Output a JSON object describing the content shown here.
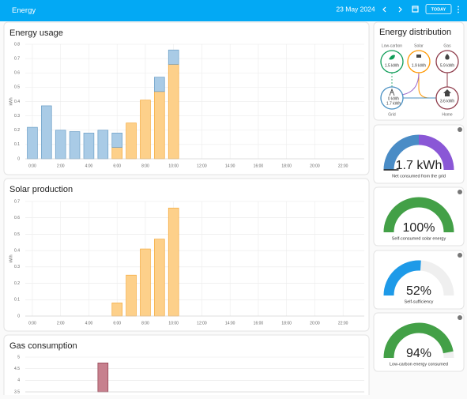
{
  "header": {
    "title": "Energy",
    "date": "23 May 2024",
    "today": "TODAY"
  },
  "chart_data": [
    {
      "type": "bar",
      "stacked": true,
      "title": "Energy usage",
      "y_label": "kWh",
      "categories": [
        "0:00",
        null,
        "2:00",
        null,
        "4:00",
        null,
        "6:00",
        null,
        "8:00",
        null,
        "10:00",
        null,
        "12:00",
        null,
        "14:00",
        null,
        "16:00",
        null,
        "18:00",
        null,
        "20:00",
        null,
        "22:00",
        null
      ],
      "series": [
        {
          "color": "#fdd08a",
          "edge_color": "#f4a93c",
          "values": [
            null,
            null,
            null,
            null,
            null,
            null,
            0.08,
            0.25,
            0.41,
            0.47,
            0.66,
            null,
            null,
            null,
            null,
            null,
            null,
            null,
            null,
            null,
            null,
            null,
            null,
            null
          ]
        },
        {
          "color": "#a9cbe6",
          "edge_color": "#6b9ec6",
          "values": [
            0.22,
            0.37,
            0.2,
            0.19,
            0.18,
            0.2,
            0.1,
            null,
            null,
            0.1,
            0.1,
            null,
            null,
            null,
            null,
            null,
            null,
            null,
            null,
            null,
            null,
            null,
            null,
            null
          ]
        }
      ],
      "ylim": [
        0,
        0.8
      ],
      "yticks": [
        0,
        0.1,
        0.2,
        0.3,
        0.4,
        0.5,
        0.6,
        0.7,
        0.8
      ],
      "grid": true
    },
    {
      "type": "bar",
      "title": "Solar production",
      "y_label": "kWh",
      "categories": [
        "0:00",
        null,
        "2:00",
        null,
        "4:00",
        null,
        "6:00",
        null,
        "8:00",
        null,
        "10:00",
        null,
        "12:00",
        null,
        "14:00",
        null,
        "16:00",
        null,
        "18:00",
        null,
        "20:00",
        null,
        "22:00",
        null
      ],
      "values": [
        null,
        null,
        null,
        null,
        null,
        null,
        0.08,
        0.25,
        0.41,
        0.47,
        0.66,
        null,
        null,
        null,
        null,
        null,
        null,
        null,
        null,
        null,
        null,
        null,
        null,
        null
      ],
      "color": "#fdd08a",
      "edge_color": "#f4a93c",
      "ylim": [
        0,
        0.7
      ],
      "yticks": [
        0,
        0.1,
        0.2,
        0.3,
        0.4,
        0.5,
        0.6,
        0.7
      ],
      "grid": true
    },
    {
      "type": "bar",
      "title": "Gas consumption",
      "values": [
        null,
        null,
        null,
        null,
        null,
        4.75,
        null,
        null,
        null,
        null,
        null,
        null,
        null,
        null,
        null,
        null,
        null,
        null,
        null,
        null,
        null,
        null,
        null,
        null
      ],
      "color": "#c7808e",
      "edge_color": "#8e3b4a",
      "ylim": [
        3.5,
        5
      ],
      "yticks": [
        3.5,
        4,
        4.5,
        5
      ],
      "grid": true
    },
    {
      "type": "gauge",
      "values": [
        1.7
      ],
      "value_labels": [
        "1.7 kWh"
      ],
      "label": "Net consumed from the grid",
      "segment_colors": [
        "#4a8cc6",
        "#8a57d6"
      ]
    },
    {
      "type": "gauge",
      "values": [
        100
      ],
      "value_labels": [
        "100%"
      ],
      "label": "Self-consumed solar energy",
      "color": "#43a047",
      "ylim": [
        0,
        100
      ]
    },
    {
      "type": "gauge",
      "values": [
        52
      ],
      "value_labels": [
        "52%"
      ],
      "label": "Self-sufficiency",
      "color": "#1e9ae8",
      "ylim": [
        0,
        100
      ]
    },
    {
      "type": "gauge",
      "values": [
        94
      ],
      "value_labels": [
        "94%"
      ],
      "label": "Low-carbon energy consumed",
      "color": "#43a047",
      "ylim": [
        0,
        100
      ]
    }
  ],
  "energy_distribution": {
    "title": "Energy distribution",
    "low_carbon": {
      "label": "Low-carbon",
      "value": "1.5 kWh"
    },
    "solar": {
      "label": "Solar",
      "value": "1.9 kWh"
    },
    "gas": {
      "label": "Gas",
      "value": "5.9 kWh"
    },
    "grid": {
      "label": "Grid",
      "from": "0 kWh",
      "to": "1.7 kWh"
    },
    "home": {
      "label": "Home",
      "value": "3.6 kWh"
    }
  }
}
